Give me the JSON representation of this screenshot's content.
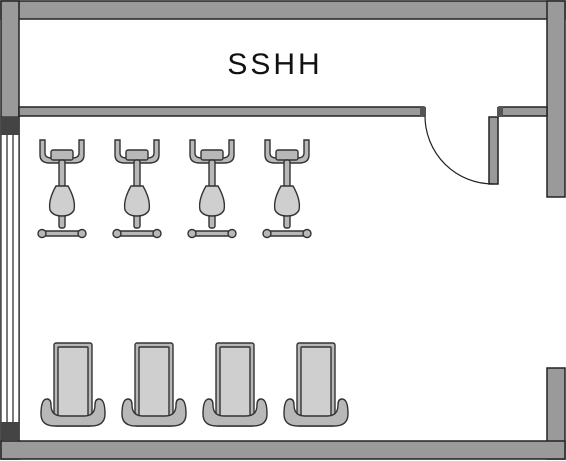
{
  "floor_plan": {
    "room_label": "SSHH",
    "equipment": [
      {
        "type": "stationary-bike",
        "count": 4
      },
      {
        "type": "seated-machine",
        "count": 4
      }
    ],
    "colors": {
      "wall": "#9a9a9a",
      "equipment": "#b8b8b8",
      "outline": "#222222",
      "background": "#ffffff"
    }
  }
}
